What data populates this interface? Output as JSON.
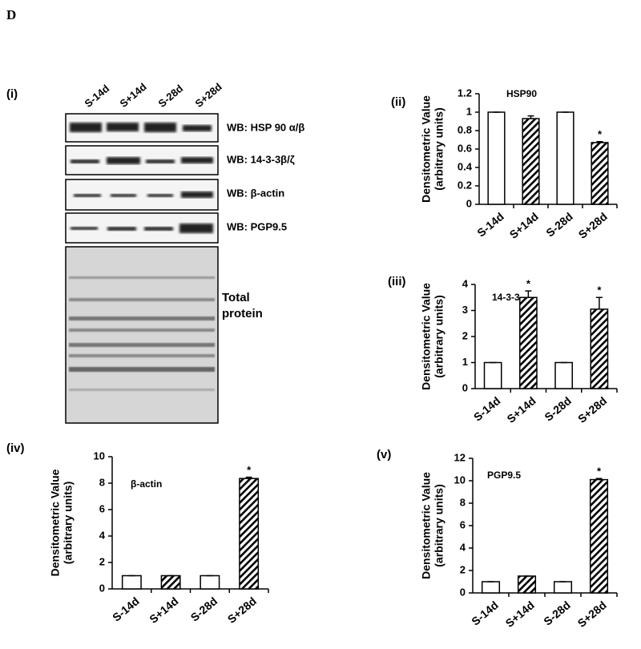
{
  "figure": {
    "label": "D",
    "panel": "(i)",
    "blot": {
      "lanes": [
        "S-14d",
        "S+14d",
        "S-28d",
        "S+28d"
      ],
      "rows": [
        "WB: HSP 90 α/β",
        "WB: 14-3-3β/ζ",
        "WB: β-actin",
        "WB: PGP9.5"
      ],
      "total": [
        "Total",
        "protein"
      ]
    }
  },
  "chart_data": [
    {
      "type": "bar",
      "panel": "(ii)",
      "title": "HSP90",
      "ylabel": [
        "Densitometric Value",
        "(arbitrary units)"
      ],
      "categories": [
        "S-14d",
        "S+14d",
        "S-28d",
        "S+28d"
      ],
      "values": [
        1,
        0.93,
        1,
        0.67
      ],
      "errors": [
        0,
        0.03,
        0,
        0.01
      ],
      "fills": [
        "open",
        "hatched",
        "open",
        "hatched"
      ],
      "markers": [
        null,
        null,
        null,
        "*"
      ],
      "color": "#000000",
      "ylim": [
        0,
        1.2
      ],
      "yticks": [
        0,
        0.2,
        0.4,
        0.6,
        0.8,
        1,
        1.2
      ]
    },
    {
      "type": "bar",
      "panel": "(iii)",
      "title": "14-3-3",
      "ylabel": [
        "Densitometric Value",
        "(arbitrary units)"
      ],
      "categories": [
        "S-14d",
        "S+14d",
        "S-28d",
        "S+28d"
      ],
      "values": [
        1,
        3.5,
        1,
        3.05
      ],
      "errors": [
        0,
        0.25,
        0,
        0.45
      ],
      "fills": [
        "open",
        "hatched",
        "open",
        "hatched"
      ],
      "markers": [
        null,
        "*",
        null,
        "*"
      ],
      "color": "#000000",
      "ylim": [
        0,
        4
      ],
      "yticks": [
        0,
        1,
        2,
        3,
        4
      ]
    },
    {
      "type": "bar",
      "panel": "(iv)",
      "title": "β-actin",
      "ylabel": [
        "Densitometric Value",
        "(arbitrary units)"
      ],
      "categories": [
        "S-14d",
        "S+14d",
        "S-28d",
        "S+28d"
      ],
      "values": [
        1,
        1,
        1,
        8.35
      ],
      "errors": [
        0,
        0,
        0,
        0.1
      ],
      "fills": [
        "open",
        "hatched",
        "open",
        "hatched"
      ],
      "markers": [
        null,
        null,
        null,
        "*"
      ],
      "color": "#000000",
      "ylim": [
        0,
        10
      ],
      "yticks": [
        0,
        2,
        4,
        6,
        8,
        10
      ]
    },
    {
      "type": "bar",
      "panel": "(v)",
      "title": "PGP9.5",
      "ylabel": [
        "Densitometric Value",
        "(arbitrary units)"
      ],
      "categories": [
        "S-14d",
        "S+14d",
        "S-28d",
        "S+28d"
      ],
      "values": [
        1,
        1.5,
        1,
        10.1
      ],
      "errors": [
        0,
        0,
        0,
        0.1
      ],
      "fills": [
        "open",
        "hatched",
        "open",
        "hatched"
      ],
      "markers": [
        null,
        null,
        null,
        "*"
      ],
      "color": "#000000",
      "ylim": [
        0,
        12
      ],
      "yticks": [
        0,
        2,
        4,
        6,
        8,
        10,
        12
      ]
    }
  ]
}
